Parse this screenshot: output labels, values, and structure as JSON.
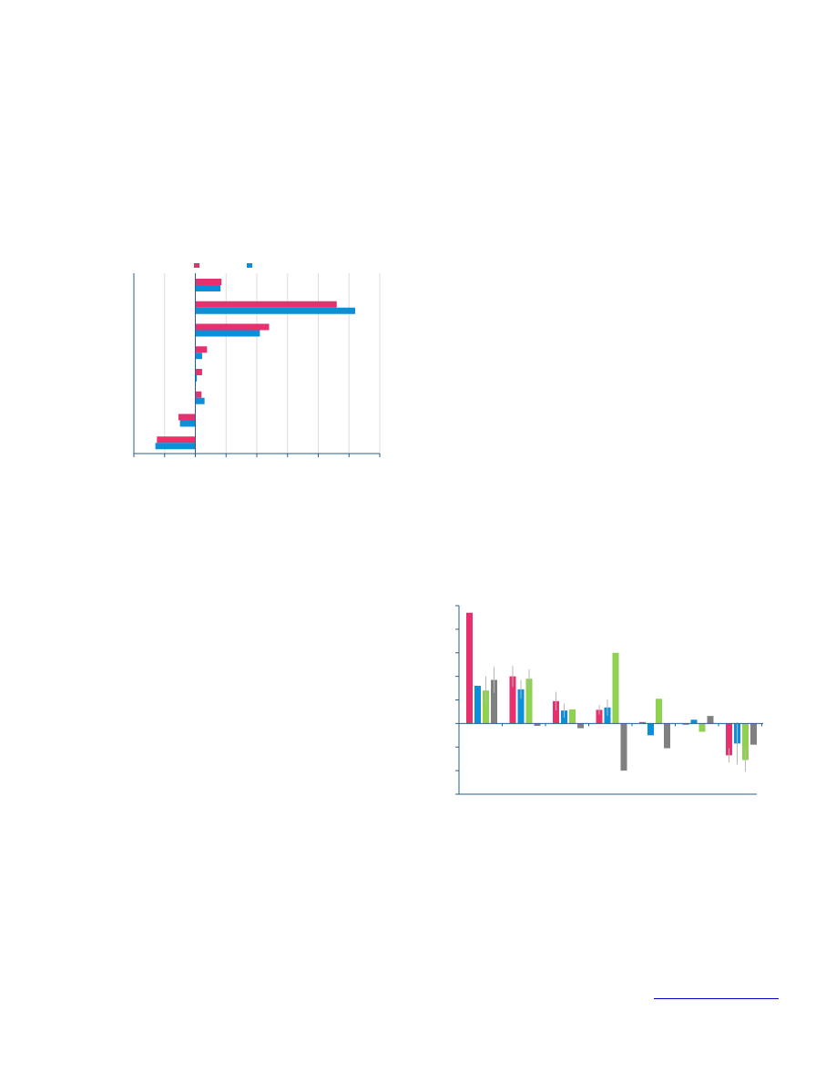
{
  "colors": {
    "pink": "#e8306f",
    "blue": "#0a8fd8",
    "green": "#8ed24f",
    "gray": "#808080",
    "axis": "#2d5c88",
    "grid": "#dddddd",
    "errorbar": "#b8b8b8",
    "link": "#0000c0"
  },
  "chart_data": [
    {
      "type": "bar",
      "orientation": "horizontal",
      "title": "",
      "xlabel": "",
      "ylabel": "",
      "xlim": [
        -2,
        6
      ],
      "xticks": [
        -2,
        -1,
        0,
        1,
        2,
        3,
        4,
        5,
        6
      ],
      "grid": true,
      "legend": "top",
      "categories": [
        "",
        "",
        "",
        "",
        "",
        "",
        "",
        ""
      ],
      "series": [
        {
          "color": "pink",
          "values": [
            0.85,
            4.6,
            2.4,
            0.38,
            0.22,
            0.2,
            -0.55,
            -1.25
          ]
        },
        {
          "color": "blue",
          "values": [
            0.82,
            5.2,
            2.1,
            0.22,
            0.05,
            0.3,
            -0.5,
            -1.3
          ]
        }
      ]
    },
    {
      "type": "bar",
      "orientation": "vertical",
      "title": "",
      "xlabel": "",
      "ylabel": "",
      "ylim": [
        -3,
        5
      ],
      "yticks": [
        -3,
        -2,
        -1,
        0,
        1,
        2,
        3,
        4,
        5
      ],
      "grid": false,
      "error_bars": true,
      "categories": [
        "",
        "",
        "",
        "",
        "",
        "",
        ""
      ],
      "series": [
        {
          "color": "pink",
          "values": [
            4.7,
            2.0,
            0.95,
            0.58,
            0.06,
            -0.05,
            -1.35
          ],
          "errors": [
            0.0,
            0.45,
            0.4,
            0.2,
            0.0,
            0.0,
            0.3
          ]
        },
        {
          "color": "blue",
          "values": [
            1.6,
            1.45,
            0.55,
            0.68,
            -0.5,
            0.16,
            -0.85
          ],
          "errors": [
            0.0,
            0.4,
            0.3,
            0.35,
            0.0,
            0.0,
            0.9
          ]
        },
        {
          "color": "green",
          "values": [
            1.4,
            1.9,
            0.6,
            3.0,
            1.05,
            -0.35,
            -1.55
          ],
          "errors": [
            0.6,
            0.4,
            0.0,
            0.0,
            0.0,
            0.0,
            0.5
          ]
        },
        {
          "color": "gray",
          "values": [
            1.85,
            -0.1,
            -0.2,
            -2.0,
            -1.05,
            0.32,
            -0.9
          ],
          "errors": [
            0.55,
            0.0,
            0.0,
            0.0,
            0.0,
            0.0,
            0.0
          ]
        }
      ]
    }
  ]
}
